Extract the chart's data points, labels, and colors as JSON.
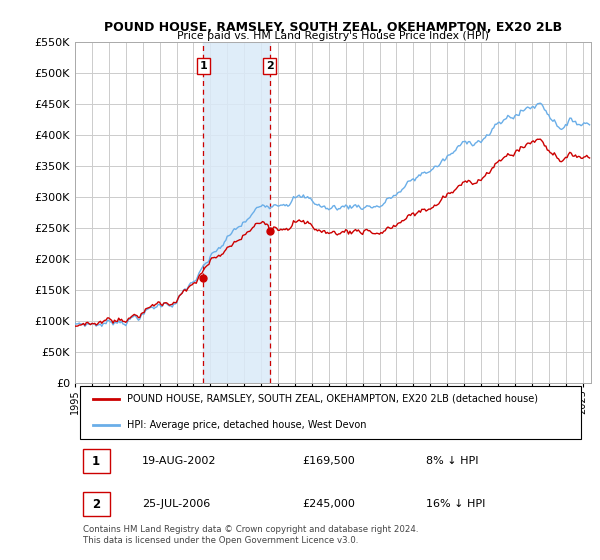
{
  "title": "POUND HOUSE, RAMSLEY, SOUTH ZEAL, OKEHAMPTON, EX20 2LB",
  "subtitle": "Price paid vs. HM Land Registry's House Price Index (HPI)",
  "legend_line1": "POUND HOUSE, RAMSLEY, SOUTH ZEAL, OKEHAMPTON, EX20 2LB (detached house)",
  "legend_line2": "HPI: Average price, detached house, West Devon",
  "purchase1_date": "19-AUG-2002",
  "purchase1_price": 169500,
  "purchase1_note": "8% ↓ HPI",
  "purchase2_date": "25-JUL-2006",
  "purchase2_price": 245000,
  "purchase2_note": "16% ↓ HPI",
  "footer": "Contains HM Land Registry data © Crown copyright and database right 2024.\nThis data is licensed under the Open Government Licence v3.0.",
  "ylim": [
    0,
    550000
  ],
  "yticks": [
    0,
    50000,
    100000,
    150000,
    200000,
    250000,
    300000,
    350000,
    400000,
    450000,
    500000,
    550000
  ],
  "hpi_color": "#6aaee8",
  "price_color": "#cc0000",
  "shade_color": "#daeaf8",
  "grid_color": "#cccccc",
  "hpi_seed": 7,
  "red_seed": 13
}
